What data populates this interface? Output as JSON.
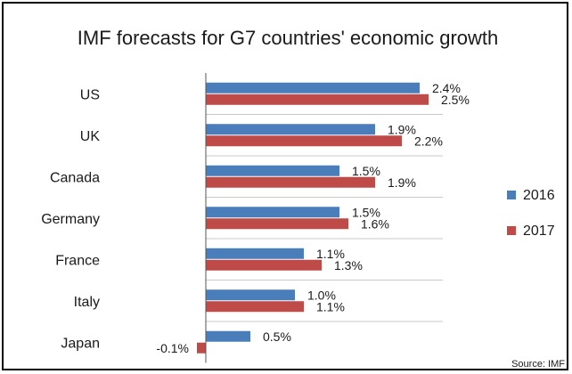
{
  "chart_data": {
    "type": "bar",
    "orientation": "horizontal",
    "title": "IMF forecasts for G7 countries' economic growth",
    "categories": [
      "US",
      "UK",
      "Canada",
      "Germany",
      "France",
      "Italy",
      "Japan"
    ],
    "series": [
      {
        "name": "2016",
        "color": "#4a7ebb",
        "values": [
          2.4,
          1.9,
          1.5,
          1.5,
          1.1,
          1.0,
          0.5
        ],
        "labels": [
          "2.4%",
          "1.9%",
          "1.5%",
          "1.5%",
          "1.1%",
          "1.0%",
          "0.5%"
        ]
      },
      {
        "name": "2017",
        "color": "#be4b48",
        "values": [
          2.5,
          2.2,
          1.9,
          1.6,
          1.3,
          1.1,
          -0.1
        ],
        "labels": [
          "2.5%",
          "2.2%",
          "1.9%",
          "1.6%",
          "1.3%",
          "1.1%",
          "-0.1%"
        ]
      }
    ],
    "xlim": [
      -0.1,
      2.5
    ],
    "gridlines": "horizontal",
    "legend": "right",
    "source": "Source: IMF"
  }
}
